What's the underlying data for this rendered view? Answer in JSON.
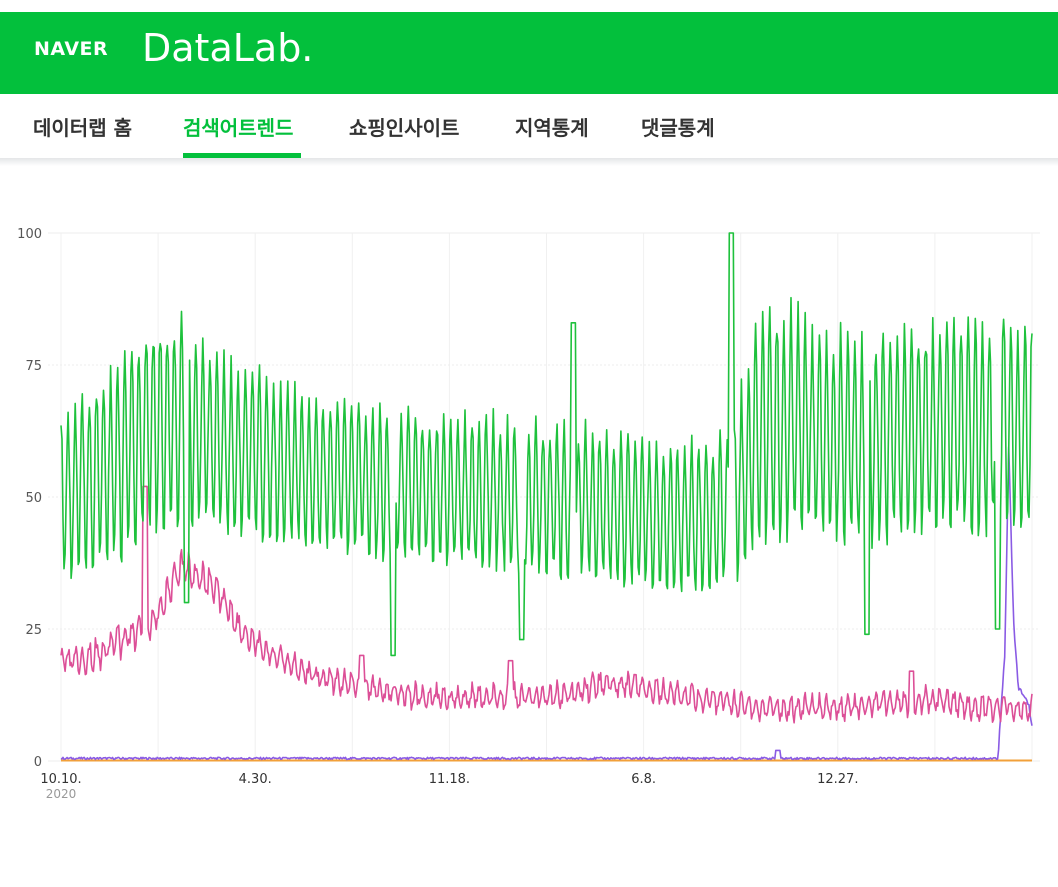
{
  "header": {
    "naver_label": "NAVER",
    "datalab_label": "DataLab."
  },
  "nav": {
    "tabs": [
      {
        "label": "데이터랩 홈"
      },
      {
        "label": "검색어트렌드"
      },
      {
        "label": "쇼핑인사이트"
      },
      {
        "label": "지역통계"
      },
      {
        "label": "댓글통계"
      }
    ],
    "active_index": 1
  },
  "colors": {
    "brand": "#03c03c",
    "series_green": "#1ec13c",
    "series_pink": "#dc4f97",
    "series_purple": "#8a5be4",
    "series_orange": "#f2a03a",
    "grid": "#eeeeee"
  },
  "chart_data": {
    "type": "line",
    "grid": true,
    "ylim": [
      0,
      100
    ],
    "yticks": [
      "0",
      "25",
      "50",
      "75",
      "100"
    ],
    "xtick_labels": [
      "10.10.",
      "4.30.",
      "11.18.",
      "6.8.",
      "12.27."
    ],
    "year_label": "2020",
    "series": [
      {
        "key": "green",
        "baseline": [
          50,
          53,
          57,
          63,
          64,
          61,
          58,
          57,
          55,
          54,
          53,
          52,
          52,
          51,
          51,
          50,
          49,
          49,
          48,
          47,
          46,
          46,
          47,
          62,
          64,
          62,
          61,
          61,
          62,
          63,
          64,
          64,
          64
        ],
        "amplitude": [
          17,
          18,
          21,
          21,
          20,
          17,
          17,
          16,
          15,
          15,
          15,
          15,
          14,
          15,
          15,
          15,
          15,
          15,
          15,
          15,
          15,
          15,
          15,
          24,
          23,
          20,
          21,
          21,
          20,
          20,
          22,
          22,
          21
        ],
        "spikes": [
          {
            "t": 0.129,
            "v": 30
          },
          {
            "t": 0.342,
            "v": 20
          },
          {
            "t": 0.474,
            "v": 23
          },
          {
            "t": 0.528,
            "v": 83
          },
          {
            "t": 0.69,
            "v": 100
          },
          {
            "t": 0.83,
            "v": 24
          },
          {
            "t": 0.965,
            "v": 25
          }
        ]
      },
      {
        "key": "pink",
        "baseline": [
          19,
          20,
          23,
          26,
          37,
          33,
          24,
          20,
          17,
          15,
          14,
          13,
          12,
          12,
          12,
          12,
          12,
          13,
          15,
          14,
          13,
          12,
          11,
          10,
          10,
          10,
          10,
          11,
          11,
          12,
          10,
          10,
          10
        ],
        "amplitude": [
          3,
          4,
          4,
          4,
          4,
          4,
          3,
          3,
          3,
          3,
          3,
          3,
          3,
          3,
          3,
          3,
          3,
          3,
          3,
          3,
          3,
          3,
          3,
          3,
          3,
          3,
          3,
          3,
          3,
          3,
          3,
          3,
          3
        ],
        "spikes": [
          {
            "t": 0.087,
            "v": 52
          },
          {
            "t": 0.31,
            "v": 20
          },
          {
            "t": 0.463,
            "v": 19
          },
          {
            "t": 0.876,
            "v": 17
          }
        ]
      },
      {
        "key": "purple",
        "baseline": [
          0.5,
          0.5,
          0.5,
          0.5,
          0.5,
          0.5,
          0.5,
          0.5,
          0.5,
          0.5,
          0.5,
          0.5,
          0.5,
          0.5,
          0.5,
          0.5,
          0.5,
          0.5,
          0.5,
          0.5,
          0.5,
          0.5,
          0.5,
          0.5,
          0.5,
          0.5,
          0.5,
          0.5,
          0.5,
          0.5,
          0.5,
          0.5,
          1
        ],
        "tail": [
          [
            0.965,
            1
          ],
          [
            0.972,
            20
          ],
          [
            0.976,
            60
          ],
          [
            0.981,
            26
          ],
          [
            0.986,
            14
          ],
          [
            0.992,
            12
          ],
          [
            0.996,
            11
          ],
          [
            1.0,
            7
          ]
        ],
        "spikes": [
          {
            "t": 0.738,
            "v": 2
          }
        ]
      },
      {
        "key": "orange",
        "constant": 0.1
      }
    ]
  }
}
